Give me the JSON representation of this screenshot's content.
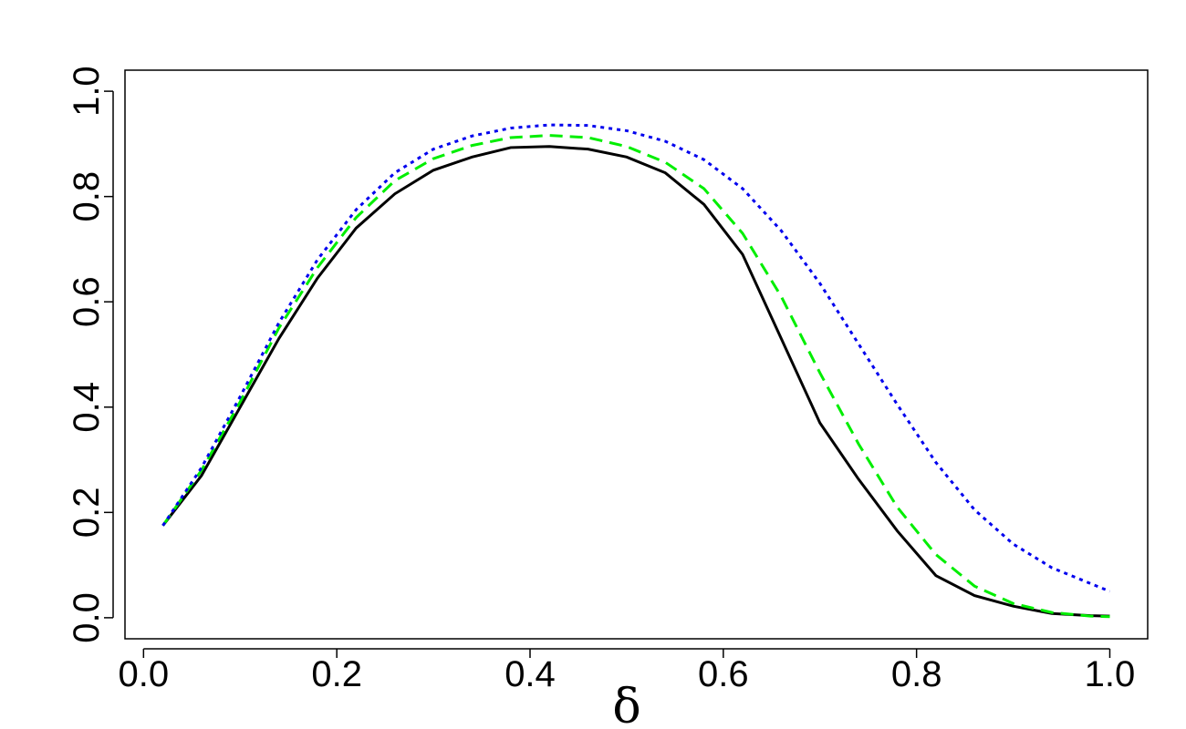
{
  "chart_data": {
    "type": "line",
    "xlabel": "δ",
    "x": [
      0.02,
      0.06,
      0.1,
      0.14,
      0.18,
      0.22,
      0.26,
      0.3,
      0.34,
      0.38,
      0.42,
      0.46,
      0.5,
      0.54,
      0.58,
      0.62,
      0.66,
      0.7,
      0.74,
      0.78,
      0.82,
      0.86,
      0.9,
      0.94,
      0.98,
      1.0
    ],
    "series": [
      {
        "color": "#000000",
        "dash": "solid",
        "values": [
          0.175,
          0.27,
          0.4,
          0.53,
          0.645,
          0.74,
          0.805,
          0.85,
          0.875,
          0.893,
          0.895,
          0.89,
          0.875,
          0.845,
          0.785,
          0.69,
          0.53,
          0.37,
          0.263,
          0.165,
          0.08,
          0.042,
          0.022,
          0.008,
          0.004,
          0.003
        ]
      },
      {
        "color": "#00ee00",
        "dash": "dashed",
        "values": [
          0.175,
          0.28,
          0.41,
          0.55,
          0.665,
          0.76,
          0.83,
          0.872,
          0.897,
          0.912,
          0.916,
          0.912,
          0.895,
          0.865,
          0.815,
          0.73,
          0.61,
          0.465,
          0.33,
          0.21,
          0.12,
          0.06,
          0.027,
          0.01,
          0.003,
          0.002
        ]
      },
      {
        "color": "#0000ee",
        "dash": "dotted",
        "values": [
          0.175,
          0.285,
          0.42,
          0.56,
          0.68,
          0.775,
          0.845,
          0.89,
          0.915,
          0.93,
          0.936,
          0.935,
          0.925,
          0.905,
          0.87,
          0.815,
          0.735,
          0.635,
          0.52,
          0.405,
          0.295,
          0.205,
          0.14,
          0.095,
          0.065,
          0.05
        ]
      }
    ],
    "xlim": [
      -0.0192,
      1.0392
    ],
    "ylim": [
      -0.04,
      1.04
    ],
    "xticks": [
      {
        "value": 0,
        "label": "0.0"
      },
      {
        "value": 0.2,
        "label": "0.2"
      },
      {
        "value": 0.4,
        "label": "0.4"
      },
      {
        "value": 0.6,
        "label": "0.6"
      },
      {
        "value": 0.8,
        "label": "0.8"
      },
      {
        "value": 1,
        "label": "1.0"
      }
    ],
    "yticks": [
      {
        "value": 0,
        "label": "0.0"
      },
      {
        "value": 0.2,
        "label": "0.2"
      },
      {
        "value": 0.4,
        "label": "0.4"
      },
      {
        "value": 0.6,
        "label": "0.6"
      },
      {
        "value": 0.8,
        "label": "0.8"
      },
      {
        "value": 1,
        "label": "1.0"
      }
    ]
  }
}
